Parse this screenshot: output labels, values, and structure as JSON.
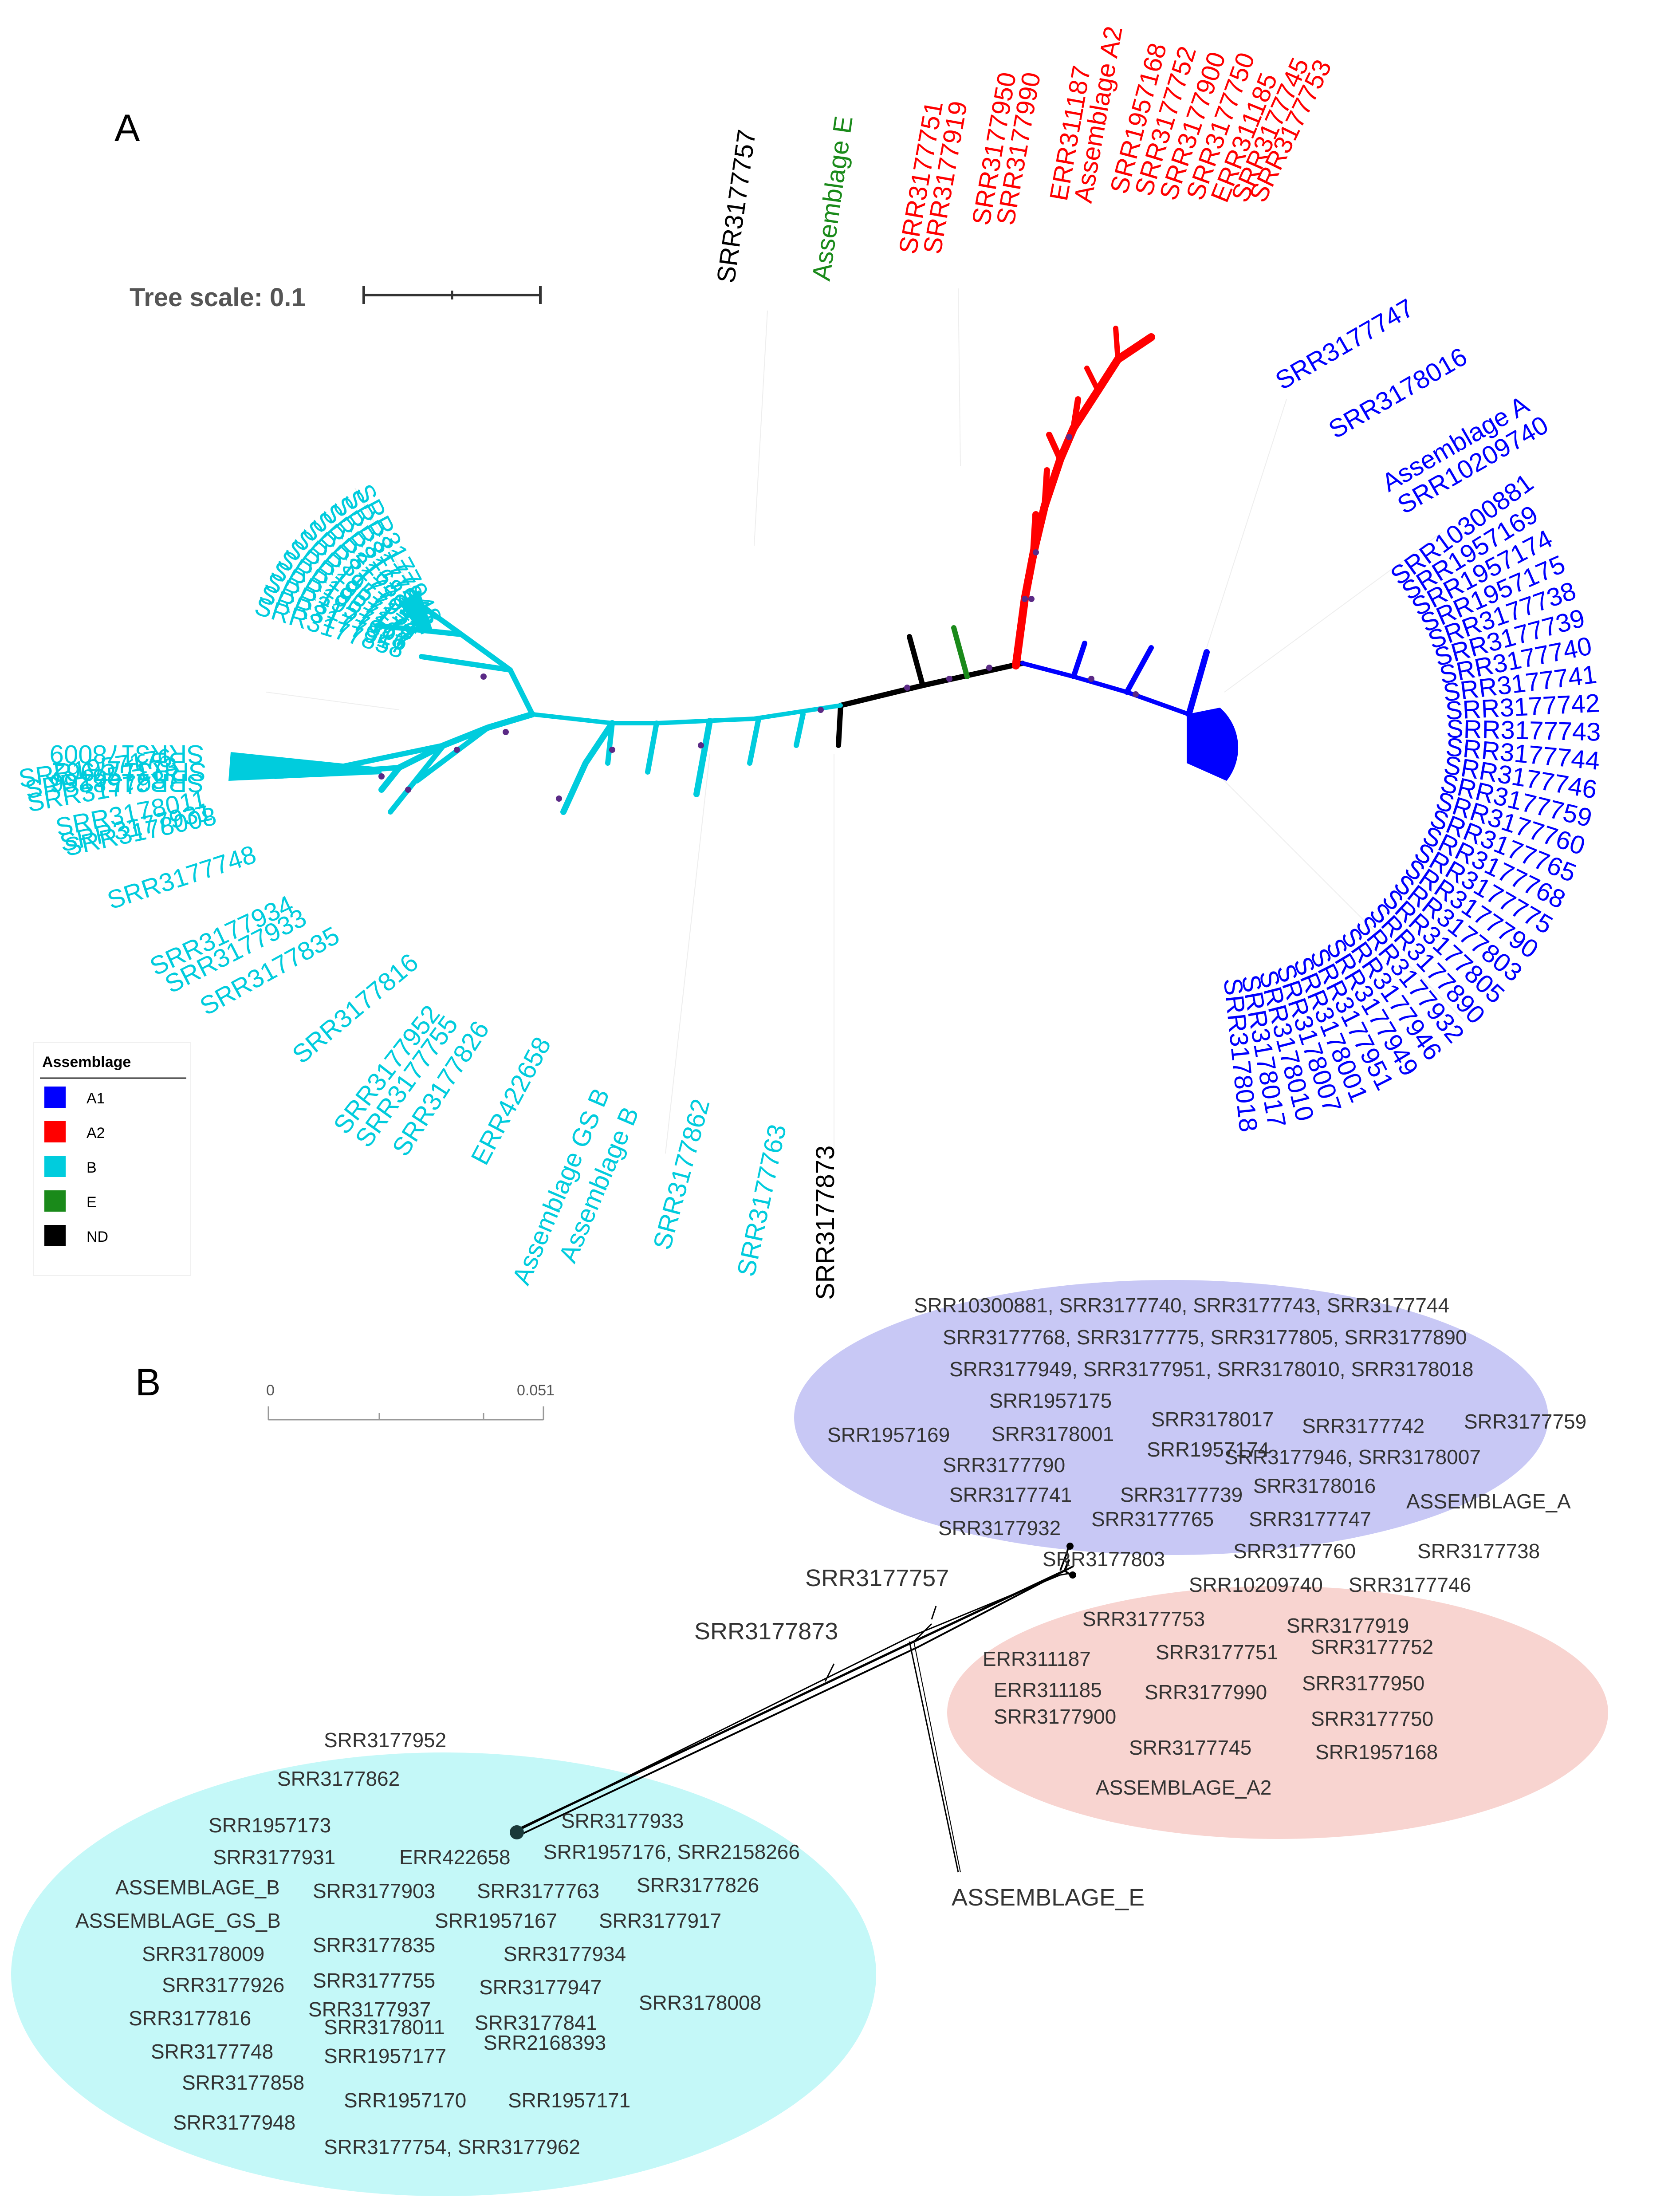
{
  "panel_a": {
    "label": "A",
    "tree_scale": {
      "label": "Tree scale: 0.1"
    },
    "legend": {
      "title": "Assemblage",
      "items": [
        {
          "label": "A1",
          "color": "#0000ff"
        },
        {
          "label": "A2",
          "color": "#ff0000"
        },
        {
          "label": "B",
          "color": "#00ccdd"
        },
        {
          "label": "E",
          "color": "#1a8a1a"
        },
        {
          "label": "ND",
          "color": "#000000"
        }
      ]
    },
    "tips": {
      "nd_top": "SRR3177757",
      "e_top": "Assemblage E",
      "a2": [
        "SRR3177751",
        "SRR3177919",
        "SRR3177950",
        "SRR3177990",
        "ERR311187",
        "Assemblage A2",
        "SRR1957168",
        "SRR3177752",
        "SRR3177900",
        "SRR3177750",
        "ERR311185",
        "SRR3177745",
        "SRR3177753"
      ],
      "a1_top": [
        "SRR3177747",
        "SRR3178016",
        "Assemblage A",
        "SRR10209740"
      ],
      "a1_fan": [
        "SRR10300881",
        "SRR1957169",
        "SRR1957174",
        "SRR1957175",
        "SRR3177738",
        "SRR3177739",
        "SRR3177740",
        "SRR3177741",
        "SRR3177742",
        "SRR3177743",
        "SRR3177744",
        "SRR3177746",
        "SRR3177759",
        "SRR3177760",
        "SRR3177765",
        "SRR3177768",
        "SRR3177775",
        "SRR3177790",
        "SRR3177803",
        "SRR3177805",
        "SRR3177890",
        "SRR3177932",
        "SRR3177946",
        "SRR3177949",
        "SRR3177951",
        "SRR3178001",
        "SRR3178007",
        "SRR3178010",
        "SRR3178017",
        "SRR3178018"
      ],
      "b_upper": [
        "SRR3177948",
        "SRR3177841",
        "SRR3177903",
        "SRR2168393",
        "SRR3177947",
        "SRR3177954",
        "SRR1957171",
        "SRR1957170",
        "SRR1957177",
        "SRR1957167",
        "SRR3177926",
        "SRR3177917",
        "SRR3177858"
      ],
      "b_left": [
        "SRR3178009",
        "SRR3177962",
        "SRR2158266",
        "SRR1957176",
        "SRR1957173",
        "SRR3177937",
        "SRR3178011",
        "SRR3178008"
      ],
      "b_lower": [
        "SRR3177931",
        "SRR3177748",
        "SRR3177934",
        "SRR3177933",
        "SRR3177835",
        "SRR3177816",
        "SRR3177952",
        "SRR3177755",
        "SRR3177826",
        "ERR422658",
        "Assemblage GS B",
        "Assemblage B",
        "SRR3177862",
        "SRR3177763"
      ],
      "nd_bottom": "SRR3177873"
    }
  },
  "panel_b": {
    "label": "B",
    "scale": {
      "start": "0",
      "end": "0.051"
    },
    "a_cluster": {
      "color": "#c8c8f5",
      "labels": [
        "SRR10300881, SRR3177740, SRR3177743, SRR3177744",
        "SRR3177768, SRR3177775, SRR3177805, SRR3177890",
        "SRR3177949, SRR3177951, SRR3178010, SRR3178018",
        "SRR1957175",
        "SRR3178017",
        "SRR1957169",
        "SRR3177742",
        "SRR3177759",
        "SRR3178001",
        "SRR1957174",
        "SRR3177946, SRR3178007",
        "SRR3177790",
        "SRR3177741",
        "SRR3177739",
        "SRR3178016",
        "ASSEMBLAGE_A",
        "SRR3177932",
        "SRR3177765",
        "SRR3177747",
        "SRR3177760",
        "SRR3177738",
        "SRR3177803",
        "SRR10209740",
        "SRR3177746"
      ]
    },
    "a2_cluster": {
      "color": "#f8d4d0",
      "labels": [
        "SRR3177753",
        "SRR3177919",
        "ERR311187",
        "SRR3177751",
        "SRR3177752",
        "SRR3177950",
        "ERR311185",
        "SRR3177990",
        "SRR3177900",
        "SRR3177750",
        "SRR3177745",
        "SRR1957168",
        "ASSEMBLAGE_A2"
      ]
    },
    "b_cluster": {
      "color": "#c4f8f8",
      "labels": [
        "SRR3177952",
        "SRR3177862",
        "SRR1957173",
        "SRR3177933",
        "SRR3177931",
        "ERR422658",
        "SRR1957176, SRR2158266",
        "ASSEMBLAGE_B",
        "SRR3177903",
        "SRR3177763",
        "SRR3177826",
        "ASSEMBLAGE_GS_B",
        "SRR1957167",
        "SRR3177917",
        "SRR3178009",
        "SRR3177835",
        "SRR3177934",
        "SRR3177926",
        "SRR3177755",
        "SRR3177947",
        "SRR3178008",
        "SRR3177937",
        "SRR3177816",
        "SRR3178011",
        "SRR3177841",
        "SRR2168393",
        "SRR3177748",
        "SRR1957177",
        "SRR3177858",
        "SRR1957170",
        "SRR1957171",
        "SRR3177948",
        "SRR3177754, SRR3177962"
      ]
    },
    "outliers": {
      "nd_757": "SRR3177757",
      "nd_873": "SRR3177873",
      "e": "ASSEMBLAGE_E"
    }
  }
}
